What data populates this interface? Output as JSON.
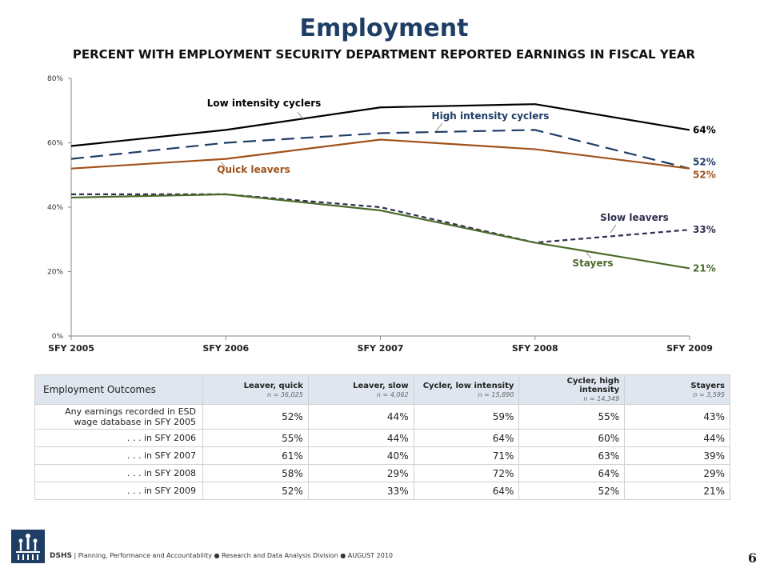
{
  "page": {
    "title": "Employment",
    "subtitle": "PERCENT WITH EMPLOYMENT SECURITY DEPARTMENT REPORTED EARNINGS IN FISCAL YEAR",
    "page_number": "6"
  },
  "footer": {
    "org": "DSHS",
    "divider": "|",
    "text": "Planning, Performance and Accountability ● Research and Data Analysis Division ● AUGUST 2010"
  },
  "chart_data": {
    "type": "line",
    "categories": [
      "SFY 2005",
      "SFY 2006",
      "SFY 2007",
      "SFY 2008",
      "SFY 2009"
    ],
    "ylim": [
      0,
      80
    ],
    "yticks": [
      "0%",
      "20%",
      "40%",
      "60%",
      "80%"
    ],
    "grid": false,
    "series": [
      {
        "key": "low",
        "name": "Low intensity cyclers",
        "color": "#000000",
        "dash": "solid",
        "values": [
          59,
          64,
          71,
          72,
          64
        ],
        "end_label": "64%"
      },
      {
        "key": "high",
        "name": "High intensity cyclers",
        "color": "#1f3e66",
        "dash": "long-dash",
        "values": [
          55,
          60,
          63,
          64,
          52
        ],
        "end_label": "52%"
      },
      {
        "key": "quick",
        "name": "Quick leavers",
        "color": "#a0521a",
        "dash": "solid",
        "values": [
          52,
          55,
          61,
          58,
          52
        ],
        "end_label": "52%"
      },
      {
        "key": "slow",
        "name": "Slow leavers",
        "color": "#2e2e50",
        "dash": "short-dash",
        "values": [
          44,
          44,
          40,
          29,
          33
        ],
        "end_label": "33%"
      },
      {
        "key": "stayers",
        "name": "Stayers",
        "color": "#4a6b2b",
        "dash": "solid",
        "values": [
          43,
          44,
          39,
          29,
          21
        ],
        "end_label": "21%"
      }
    ]
  },
  "table": {
    "row_header": "Employment Outcomes",
    "columns": [
      {
        "name": "Leaver, quick",
        "n": "n = 36,025"
      },
      {
        "name": "Leaver, slow",
        "n": "n = 4,062"
      },
      {
        "name": "Cycler, low intensity",
        "n": "n = 15,890"
      },
      {
        "name": "Cycler, high intensity",
        "n": "n = 14,349"
      },
      {
        "name": "Stayers",
        "n": "n = 3,595"
      }
    ],
    "rows": [
      {
        "label": "Any earnings recorded in ESD wage database in SFY 2005",
        "values": [
          "52%",
          "44%",
          "59%",
          "55%",
          "43%"
        ]
      },
      {
        "label": ". . . in SFY 2006",
        "values": [
          "55%",
          "44%",
          "64%",
          "60%",
          "44%"
        ]
      },
      {
        "label": ". . . in SFY 2007",
        "values": [
          "61%",
          "40%",
          "71%",
          "63%",
          "39%"
        ]
      },
      {
        "label": ". . . in SFY 2008",
        "values": [
          "58%",
          "29%",
          "72%",
          "64%",
          "29%"
        ]
      },
      {
        "label": ". . . in SFY 2009",
        "values": [
          "52%",
          "33%",
          "64%",
          "52%",
          "21%"
        ]
      }
    ]
  }
}
